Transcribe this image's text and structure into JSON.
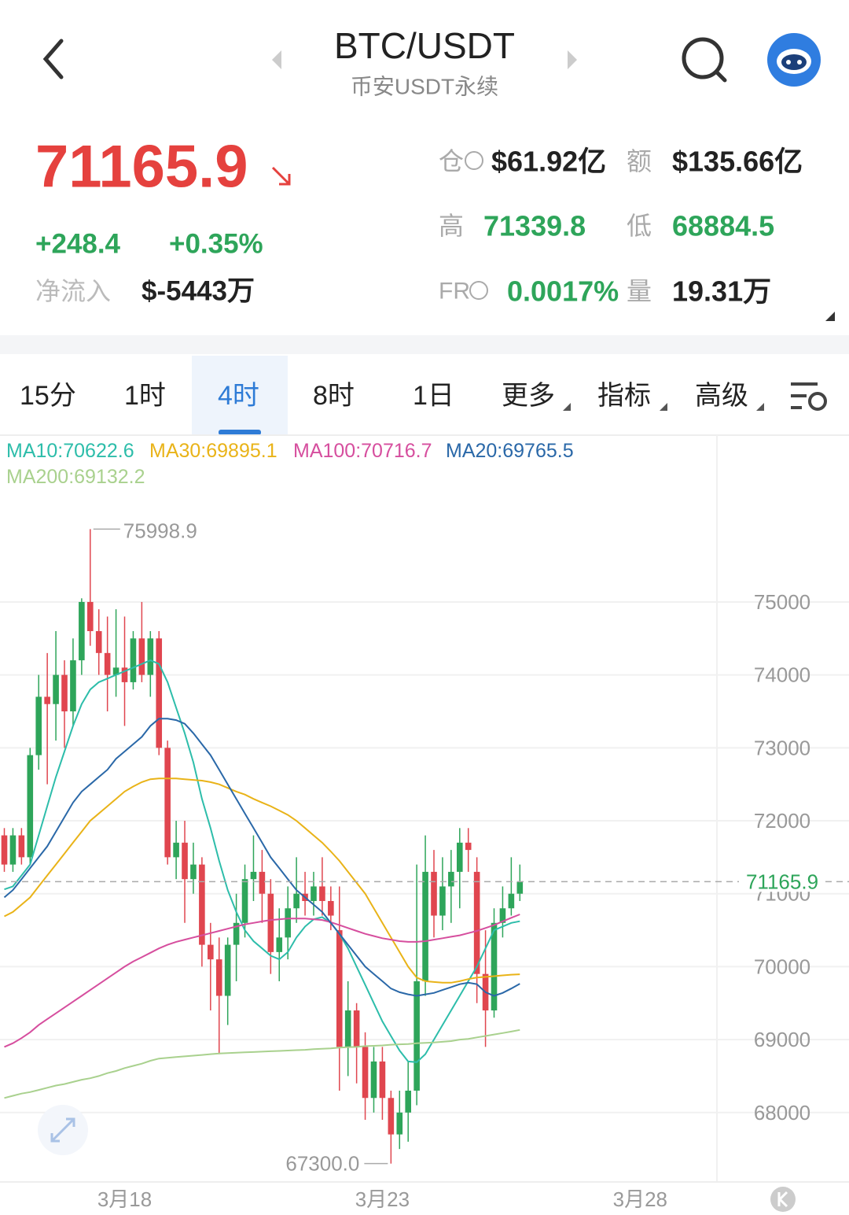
{
  "header": {
    "title": "BTC/USDT",
    "subtitle": "币安USDT永续"
  },
  "ticker": {
    "price": "71165.9",
    "change": "+248.4",
    "change_pct": "+0.35%",
    "inflow_label": "净流入",
    "inflow": "$-5443万",
    "stats": [
      {
        "label": "仓",
        "value": "$61.92亿"
      },
      {
        "label": "额",
        "value": "$135.66亿"
      },
      {
        "label": "高",
        "value": "71339.8"
      },
      {
        "label": "低",
        "value": "68884.5"
      },
      {
        "label": "FR",
        "value": "0.0017%"
      },
      {
        "label": "量",
        "value": "19.31万"
      }
    ]
  },
  "tabs": {
    "items": [
      "15分",
      "1时",
      "4时",
      "8时",
      "1日",
      "更多",
      "指标",
      "高级"
    ],
    "selected": 2
  },
  "chart_data": {
    "type": "candlestick",
    "up_color": "#2ea55a",
    "down_color": "#e0464f",
    "categories": [
      null,
      null,
      null,
      null,
      null,
      null,
      null,
      null,
      null,
      null,
      null,
      null,
      null,
      null,
      "3月18",
      null,
      null,
      null,
      null,
      null,
      null,
      null,
      null,
      null,
      null,
      null,
      null,
      null,
      null,
      null,
      null,
      null,
      null,
      null,
      null,
      null,
      null,
      null,
      null,
      null,
      null,
      null,
      null,
      null,
      "3月23",
      null,
      null,
      null,
      null,
      null,
      null,
      null,
      null,
      null,
      null,
      null,
      null,
      null,
      null,
      null,
      null,
      null,
      null,
      null,
      null,
      null,
      null,
      null,
      null,
      null,
      null,
      null,
      null,
      null,
      "3月28",
      null,
      null,
      null,
      null,
      null,
      null,
      null,
      null
    ],
    "open": [
      71800,
      71400,
      71800,
      71500,
      72900,
      73700,
      73600,
      74000,
      73500,
      74200,
      75000,
      74600,
      74300,
      74000,
      74100,
      73900,
      74500,
      74000,
      74500,
      73000,
      71500,
      71700,
      71200,
      71400,
      70300,
      70100,
      69600,
      70300,
      70600,
      71200,
      71300,
      71000,
      70200,
      70400,
      70800,
      71000,
      70900,
      71100,
      70900,
      70500,
      68900,
      69400,
      68900,
      68200,
      68700,
      68200,
      67700,
      68000,
      68300,
      69800,
      71300,
      70700,
      71100,
      71300,
      71700,
      71300,
      69900,
      69400,
      70600,
      70800,
      71000,
      null,
      null,
      null,
      null,
      null,
      null,
      null,
      null,
      null,
      null,
      null,
      null,
      null,
      null,
      null,
      null,
      null,
      null,
      null,
      null,
      null,
      null
    ],
    "high": [
      71900,
      71900,
      71900,
      73000,
      74000,
      74300,
      74600,
      74200,
      74500,
      75050,
      75998.9,
      74900,
      74800,
      74900,
      74800,
      74600,
      75000,
      74600,
      74600,
      73100,
      72000,
      72000,
      71700,
      71500,
      70600,
      70400,
      70400,
      71000,
      71400,
      71800,
      71600,
      71200,
      70800,
      71100,
      71500,
      71300,
      71300,
      71500,
      71100,
      71100,
      69800,
      69500,
      69100,
      68900,
      68900,
      68300,
      68300,
      68700,
      71400,
      71800,
      71600,
      71500,
      71600,
      71900,
      71900,
      71500,
      70500,
      70800,
      71100,
      71500,
      71400,
      null,
      null,
      null,
      null,
      null,
      null,
      null,
      null,
      null,
      null,
      null,
      null,
      null,
      null,
      null,
      null,
      null,
      null,
      null,
      null,
      null,
      null
    ],
    "low": [
      71300,
      71300,
      71400,
      71400,
      72700,
      72500,
      73100,
      73000,
      73300,
      74000,
      74400,
      74000,
      73500,
      73700,
      73300,
      73800,
      73900,
      73700,
      72900,
      71400,
      71200,
      70600,
      71000,
      70000,
      69400,
      68800,
      69200,
      69800,
      70400,
      70900,
      70600,
      69900,
      69800,
      70100,
      70600,
      70700,
      70700,
      70700,
      70500,
      68300,
      68500,
      68400,
      67900,
      68000,
      67900,
      67300.0,
      67500,
      67600,
      68100,
      69600,
      70400,
      70500,
      70600,
      70800,
      71300,
      69500,
      68900,
      69300,
      70400,
      70700,
      70900,
      null,
      null,
      null,
      null,
      null,
      null,
      null,
      null,
      null,
      null,
      null,
      null,
      null,
      null,
      null,
      null,
      null,
      null,
      null,
      null,
      null,
      null
    ],
    "close": [
      71400,
      71800,
      71500,
      72900,
      73700,
      73600,
      74000,
      73500,
      74200,
      75000,
      74600,
      74300,
      74000,
      74100,
      73900,
      74500,
      74000,
      74500,
      73000,
      71500,
      71700,
      71200,
      71400,
      70300,
      70100,
      69600,
      70300,
      70600,
      71200,
      71300,
      71000,
      70200,
      70400,
      70800,
      71000,
      70900,
      71100,
      70900,
      70700,
      68900,
      69400,
      68900,
      68200,
      68700,
      68200,
      67700,
      68000,
      68300,
      69800,
      71300,
      70700,
      71100,
      71300,
      71700,
      71600,
      69900,
      69400,
      70600,
      70800,
      71000,
      71165.9,
      null,
      null,
      null,
      null,
      null,
      null,
      null,
      null,
      null,
      null,
      null,
      null,
      null,
      null,
      null,
      null,
      null,
      null,
      null,
      null,
      null,
      null
    ],
    "series": [
      {
        "name": "MA10:70622.6",
        "color": "#2dbdaa",
        "values": [
          71060,
          71100,
          71250,
          71400,
          71800,
          72200,
          72600,
          72950,
          73300,
          73600,
          73800,
          73900,
          73950,
          74000,
          74050,
          74100,
          74150,
          74200,
          74150,
          73900,
          73550,
          73200,
          72800,
          72300,
          71900,
          71450,
          71050,
          70750,
          70500,
          70350,
          70250,
          70150,
          70100,
          70200,
          70400,
          70550,
          70650,
          70680,
          70600,
          70450,
          70250,
          70000,
          69750,
          69500,
          69250,
          69050,
          68850,
          68700,
          68690,
          68800,
          69000,
          69200,
          69400,
          69600,
          69800,
          70000,
          70250,
          70500,
          70550,
          70600,
          70622.6,
          null,
          null,
          null,
          null,
          null,
          null,
          null,
          null,
          null,
          null,
          null,
          null,
          null,
          null,
          null,
          null,
          null,
          null,
          null,
          null,
          null,
          null
        ]
      },
      {
        "name": "MA30:69895.1",
        "color": "#e9b318",
        "values": [
          70690,
          70750,
          70850,
          70950,
          71100,
          71250,
          71400,
          71550,
          71700,
          71850,
          72000,
          72100,
          72200,
          72300,
          72400,
          72470,
          72530,
          72570,
          72580,
          72580,
          72580,
          72570,
          72560,
          72550,
          72530,
          72500,
          72450,
          72400,
          72360,
          72300,
          72250,
          72200,
          72140,
          72080,
          72000,
          71900,
          71800,
          71700,
          71580,
          71450,
          71300,
          71150,
          71000,
          70800,
          70600,
          70400,
          70200,
          70000,
          69850,
          69800,
          69790,
          69780,
          69780,
          69800,
          69830,
          69850,
          69860,
          69870,
          69880,
          69890,
          69895.1,
          null,
          null,
          null,
          null,
          null,
          null,
          null,
          null,
          null,
          null,
          null,
          null,
          null,
          null,
          null,
          null,
          null,
          null,
          null,
          null,
          null,
          null
        ]
      },
      {
        "name": "MA100:70716.7",
        "color": "#d64e9e",
        "values": [
          68900,
          68950,
          69020,
          69100,
          69200,
          69280,
          69360,
          69440,
          69520,
          69600,
          69680,
          69760,
          69840,
          69920,
          70000,
          70070,
          70130,
          70190,
          70250,
          70300,
          70340,
          70370,
          70400,
          70430,
          70460,
          70490,
          70520,
          70550,
          70580,
          70600,
          70620,
          70640,
          70650,
          70660,
          70660,
          70660,
          70650,
          70640,
          70610,
          70570,
          70530,
          70490,
          70450,
          70420,
          70390,
          70370,
          70350,
          70340,
          70340,
          70350,
          70370,
          70390,
          70410,
          70430,
          70460,
          70490,
          70530,
          70570,
          70620,
          70670,
          70716.7,
          null,
          null,
          null,
          null,
          null,
          null,
          null,
          null,
          null,
          null,
          null,
          null,
          null,
          null,
          null,
          null,
          null,
          null,
          null,
          null,
          null,
          null
        ]
      },
      {
        "name": "MA20:69765.5",
        "color": "#2a68a8",
        "values": [
          70950,
          71050,
          71200,
          71350,
          71500,
          71650,
          71850,
          72050,
          72250,
          72400,
          72500,
          72600,
          72700,
          72850,
          72950,
          73050,
          73150,
          73300,
          73400,
          73400,
          73380,
          73330,
          73200,
          73050,
          72900,
          72700,
          72500,
          72300,
          72100,
          71900,
          71700,
          71500,
          71350,
          71200,
          71050,
          70950,
          70850,
          70750,
          70600,
          70450,
          70300,
          70150,
          70000,
          69900,
          69800,
          69700,
          69650,
          69620,
          69600,
          69620,
          69640,
          69680,
          69720,
          69760,
          69780,
          69760,
          69650,
          69600,
          69640,
          69700,
          69765.5,
          null,
          null,
          null,
          null,
          null,
          null,
          null,
          null,
          null,
          null,
          null,
          null,
          null,
          null,
          null,
          null,
          null,
          null,
          null,
          null,
          null,
          null
        ]
      },
      {
        "name": "MA200:69132.2",
        "color": "#a9d18e",
        "values": [
          68200,
          68230,
          68260,
          68280,
          68310,
          68340,
          68370,
          68390,
          68420,
          68450,
          68470,
          68500,
          68540,
          68570,
          68610,
          68640,
          68670,
          68710,
          68740,
          68750,
          68760,
          68770,
          68780,
          68790,
          68800,
          68810,
          68815,
          68820,
          68825,
          68830,
          68835,
          68840,
          68845,
          68850,
          68855,
          68860,
          68870,
          68875,
          68880,
          68890,
          68895,
          68900,
          68910,
          68915,
          68920,
          68930,
          68935,
          68940,
          68950,
          68955,
          68960,
          68970,
          68980,
          69000,
          69010,
          69030,
          69050,
          69070,
          69090,
          69110,
          69132.2,
          null,
          null,
          null,
          null,
          null,
          null,
          null,
          null,
          null,
          null,
          null,
          null,
          null,
          null,
          null,
          null,
          null,
          null,
          null,
          null,
          null,
          null
        ]
      }
    ],
    "ylim": [
      67070,
      77265
    ],
    "yticks": [
      68000,
      69000,
      70000,
      71000,
      72000,
      73000,
      74000,
      75000
    ],
    "grid": true,
    "annotations": {
      "max": "75998.9",
      "min": "67300.0"
    },
    "last_price_label": "71165.9"
  }
}
